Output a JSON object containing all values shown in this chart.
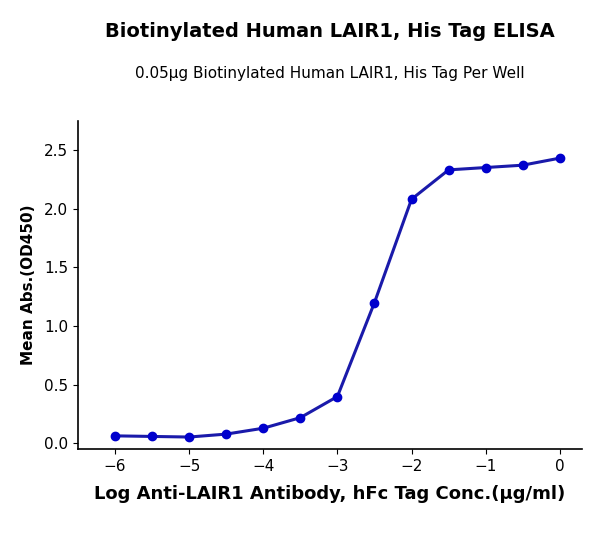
{
  "title": "Biotinylated Human LAIR1, His Tag ELISA",
  "subtitle": "0.05µg Biotinylated Human LAIR1, His Tag Per Well",
  "xlabel": "Log Anti-LAIR1 Antibody, hFc Tag Conc.(µg/ml)",
  "ylabel": "Mean Abs.(OD450)",
  "curve_color": "#1a1aaa",
  "dot_color": "#0000cd",
  "xlim": [
    -6.5,
    0.3
  ],
  "ylim": [
    -0.05,
    2.75
  ],
  "xticks": [
    -6,
    -5,
    -4,
    -3,
    -2,
    -1,
    0
  ],
  "yticks": [
    0.0,
    0.5,
    1.0,
    1.5,
    2.0,
    2.5
  ],
  "data_x": [
    -6,
    -5.5,
    -5,
    -4.5,
    -4,
    -3.5,
    -3,
    -2.5,
    -2,
    -1.5,
    -1,
    -0.5,
    0
  ],
  "data_y": [
    0.065,
    0.06,
    0.055,
    0.08,
    0.13,
    0.22,
    0.4,
    1.2,
    2.08,
    2.33,
    2.35,
    2.37,
    2.43
  ],
  "title_fontsize": 14,
  "subtitle_fontsize": 11,
  "xlabel_fontsize": 13,
  "ylabel_fontsize": 11,
  "tick_fontsize": 11,
  "line_width": 2.2,
  "marker_size": 6,
  "background_color": "#ffffff"
}
